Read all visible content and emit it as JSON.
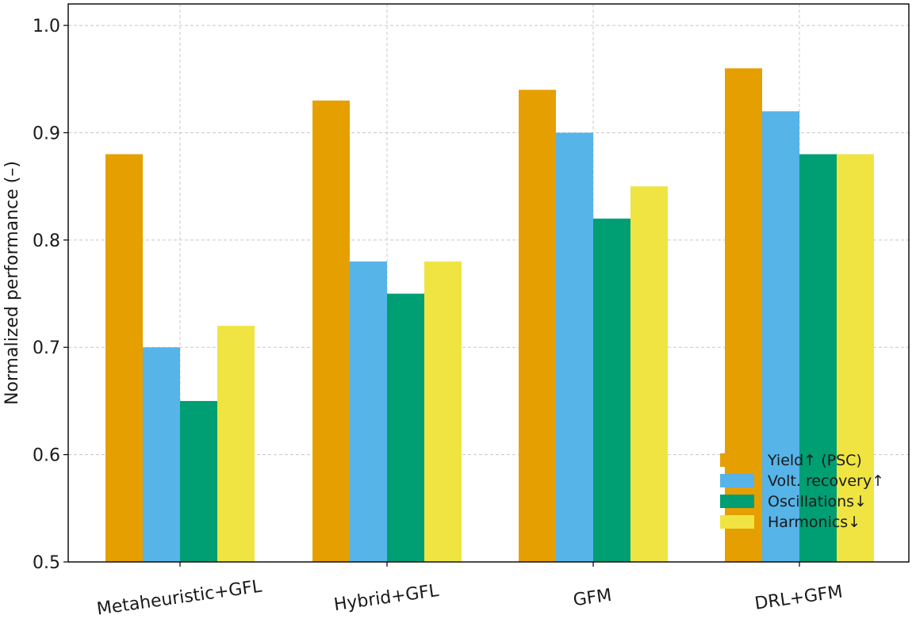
{
  "chart_data": {
    "type": "bar",
    "title": "",
    "xlabel": "",
    "ylabel": "Normalized performance (–)",
    "ylim": [
      0.5,
      1.02
    ],
    "yticks": [
      "0.5",
      "0.6",
      "0.7",
      "0.8",
      "0.9",
      "1.0"
    ],
    "ytick_values": [
      0.5,
      0.6,
      0.7,
      0.8,
      0.9,
      1.0
    ],
    "grid": true,
    "legend_position": "lower-right",
    "categories": [
      "Metaheuristic+GFL",
      "Hybrid+GFL",
      "GFM",
      "DRL+GFM"
    ],
    "series": [
      {
        "name": "Yield↑ (PSC)",
        "color": "#E69F00",
        "values": [
          0.88,
          0.93,
          0.94,
          0.96
        ]
      },
      {
        "name": "Volt. recovery↑",
        "color": "#56B4E9",
        "values": [
          0.7,
          0.78,
          0.9,
          0.92
        ]
      },
      {
        "name": "Oscillations↓",
        "color": "#009E73",
        "values": [
          0.65,
          0.75,
          0.82,
          0.88
        ]
      },
      {
        "name": "Harmonics↓",
        "color": "#F0E442",
        "values": [
          0.72,
          0.78,
          0.85,
          0.88
        ]
      }
    ]
  }
}
